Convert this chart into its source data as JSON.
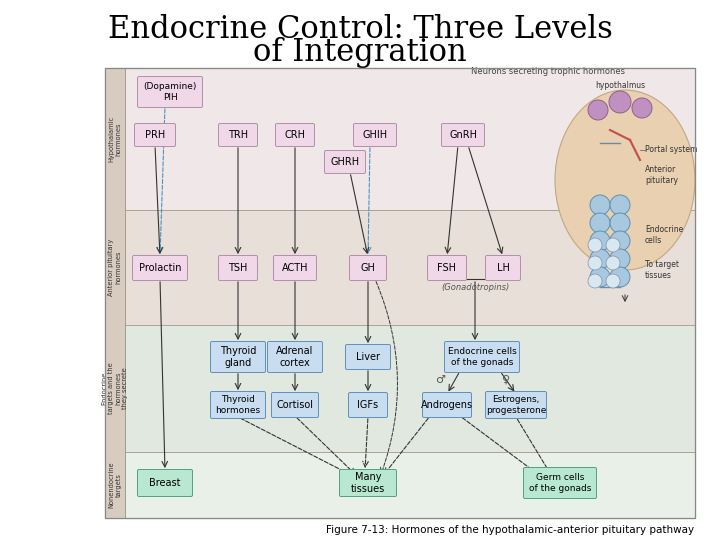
{
  "title_line1": "Endocrine Control: Three Levels",
  "title_line2": "of Integration",
  "caption": "Figure 7-13: Hormones of the hypothalamic-anterior pituitary pathway",
  "title_fontsize": 22,
  "caption_fontsize": 7.5,
  "bg_color": "#ffffff",
  "diagram_bg": "#ede0c8",
  "hypo_band_color": "#f0e8e8",
  "ant_band_color": "#e8e0d8",
  "endo_band_color": "#e0e8e0",
  "nonendo_band_color": "#e8f0e8",
  "pink_box_color": "#f0d8e8",
  "pink_box_edge": "#b090a8",
  "blue_box_color": "#c8ddf0",
  "blue_box_edge": "#6090b8",
  "green_box_color": "#b8e8d0",
  "green_box_edge": "#50a080",
  "text_color": "#000000",
  "arrow_color": "#333333",
  "inhibit_color": "#5090c0",
  "label_color": "#303030",
  "strip_color": "#d8ccc0",
  "strip_edge": "#a09080"
}
